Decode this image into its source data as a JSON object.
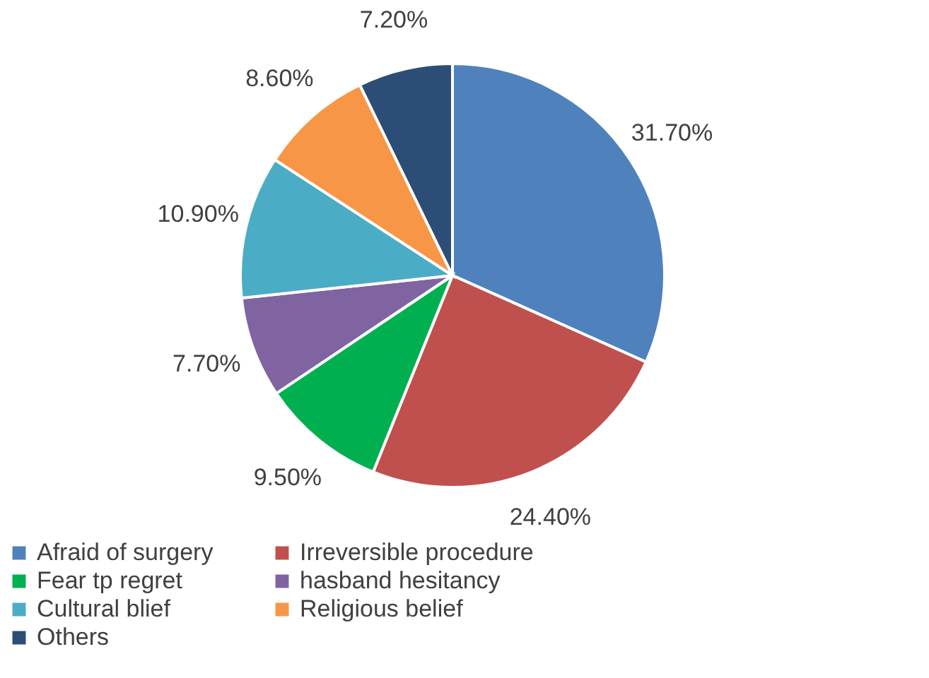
{
  "chart_data": {
    "type": "pie",
    "categories": [
      "Afraid of surgery",
      "Irreversible procedure",
      "Fear tp regret",
      "hasband hesitancy",
      "Cultural blief",
      "Religious belief",
      "Others"
    ],
    "values": [
      31.7,
      24.4,
      9.5,
      7.7,
      10.9,
      8.6,
      7.2
    ],
    "value_labels": [
      "31.70%",
      "24.40%",
      "9.50%",
      "7.70%",
      "10.90%",
      "8.60%",
      "7.20%"
    ],
    "colors": [
      "#4f81bd",
      "#c0504d",
      "#00b050",
      "#8064a2",
      "#4bacc6",
      "#f79646",
      "#2c4d75"
    ],
    "legend": "bottom"
  }
}
